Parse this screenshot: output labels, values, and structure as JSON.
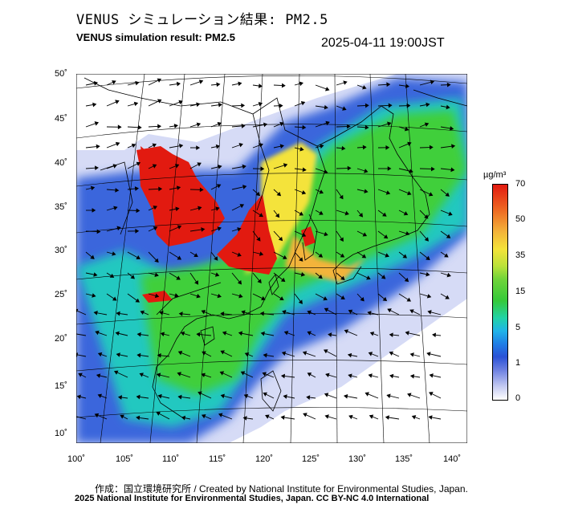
{
  "title_ja": "VENUS シミュレーション結果: PM2.5",
  "title_en": "VENUS simulation result: PM2.5",
  "datetime": "2025-04-11 19:00JST",
  "lat_labels": [
    "50˚",
    "45˚",
    "40˚",
    "35˚",
    "30˚",
    "25˚",
    "20˚",
    "15˚",
    "10˚"
  ],
  "lon_labels": [
    "100˚",
    "105˚",
    "110˚",
    "115˚",
    "120˚",
    "125˚",
    "130˚",
    "135˚",
    "140˚"
  ],
  "colorbar": {
    "unit": "µg/m³",
    "ticks": [
      "70",
      "50",
      "35",
      "15",
      "5",
      "1",
      "0"
    ]
  },
  "credit_line1": "作成：国立環境研究所 / Created by National Institute for Environmental Studies, Japan.",
  "credit_line2": "2025 National Institute for Environmental Studies, Japan. CC BY-NC 4.0 International",
  "colors": {
    "high": "#e21a10",
    "mid": "#f4e33a",
    "low": "#35c93a",
    "clean": "#2a52d6"
  }
}
